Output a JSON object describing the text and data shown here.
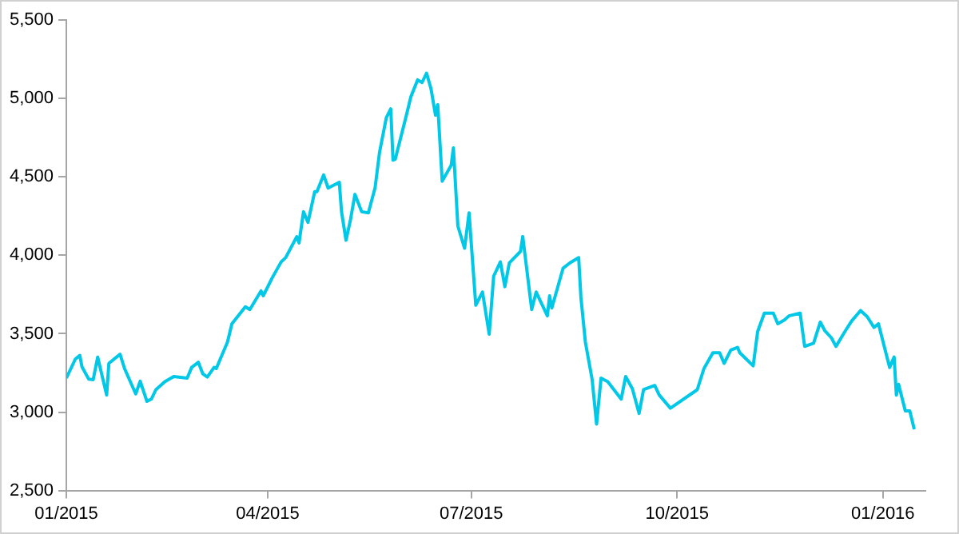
{
  "chart_data": {
    "type": "line",
    "x": [
      "2015-01-01",
      "2015-01-05",
      "2015-01-07",
      "2015-01-08",
      "2015-01-11",
      "2015-01-13",
      "2015-01-15",
      "2015-01-19",
      "2015-01-20",
      "2015-01-25",
      "2015-01-27",
      "2015-02-01",
      "2015-02-03",
      "2015-02-06",
      "2015-02-08",
      "2015-02-10",
      "2015-02-14",
      "2015-02-18",
      "2015-02-24",
      "2015-02-26",
      "2015-03-01",
      "2015-03-03",
      "2015-03-05",
      "2015-03-08",
      "2015-03-09",
      "2015-03-14",
      "2015-03-16",
      "2015-03-22",
      "2015-03-24",
      "2015-03-29",
      "2015-03-30",
      "2015-04-03",
      "2015-04-07",
      "2015-04-09",
      "2015-04-14",
      "2015-04-15",
      "2015-04-17",
      "2015-04-19",
      "2015-04-22",
      "2015-04-23",
      "2015-04-26",
      "2015-04-28",
      "2015-05-03",
      "2015-05-04",
      "2015-05-06",
      "2015-05-08",
      "2015-05-10",
      "2015-05-13",
      "2015-05-16",
      "2015-05-19",
      "2015-05-21",
      "2015-05-24",
      "2015-05-26",
      "2015-05-27",
      "2015-05-28",
      "2015-06-02",
      "2015-06-04",
      "2015-06-07",
      "2015-06-09",
      "2015-06-11",
      "2015-06-13",
      "2015-06-15",
      "2015-06-16",
      "2015-06-18",
      "2015-06-22",
      "2015-06-23",
      "2015-06-25",
      "2015-06-28",
      "2015-06-30",
      "2015-07-03",
      "2015-07-06",
      "2015-07-09",
      "2015-07-11",
      "2015-07-14",
      "2015-07-16",
      "2015-07-18",
      "2015-07-23",
      "2015-07-24",
      "2015-07-28",
      "2015-07-30",
      "2015-08-04",
      "2015-08-05",
      "2015-08-06",
      "2015-08-11",
      "2015-08-14",
      "2015-08-18",
      "2015-08-19",
      "2015-08-21",
      "2015-08-24",
      "2015-08-26",
      "2015-08-28",
      "2015-08-31",
      "2015-09-06",
      "2015-09-08",
      "2015-09-11",
      "2015-09-14",
      "2015-09-16",
      "2015-09-21",
      "2015-09-23",
      "2015-09-28",
      "2015-10-10",
      "2015-10-13",
      "2015-10-17",
      "2015-10-20",
      "2015-10-22",
      "2015-10-25",
      "2015-10-28",
      "2015-10-29",
      "2015-11-04",
      "2015-11-06",
      "2015-11-09",
      "2015-11-13",
      "2015-11-15",
      "2015-11-18",
      "2015-11-20",
      "2015-11-25",
      "2015-11-27",
      "2015-12-01",
      "2015-12-04",
      "2015-12-06",
      "2015-12-09",
      "2015-12-11",
      "2015-12-15",
      "2015-12-18",
      "2015-12-22",
      "2015-12-25",
      "2015-12-28",
      "2015-12-30",
      "2016-01-04",
      "2016-01-06",
      "2016-01-07",
      "2016-01-08",
      "2016-01-11",
      "2016-01-13",
      "2016-01-15"
    ],
    "series": [
      {
        "color": "#00c8e6",
        "values": [
          3217,
          3338,
          3362,
          3288,
          3210,
          3207,
          3351,
          3109,
          3311,
          3369,
          3278,
          3116,
          3197,
          3069,
          3083,
          3143,
          3194,
          3227,
          3217,
          3285,
          3318,
          3244,
          3224,
          3285,
          3278,
          3446,
          3564,
          3672,
          3654,
          3773,
          3742,
          3856,
          3958,
          3985,
          4119,
          4079,
          4278,
          4210,
          4406,
          4406,
          4513,
          4429,
          4466,
          4278,
          4096,
          4227,
          4389,
          4278,
          4271,
          4432,
          4658,
          4877,
          4934,
          4607,
          4613,
          4894,
          5012,
          5119,
          5102,
          5162,
          5062,
          4894,
          4961,
          4473,
          4574,
          4685,
          4187,
          4045,
          4271,
          3682,
          3766,
          3497,
          3867,
          3958,
          3800,
          3952,
          4025,
          4120,
          3654,
          3766,
          3614,
          3742,
          3664,
          3917,
          3951,
          3985,
          3732,
          3446,
          3210,
          2924,
          3217,
          3194,
          3083,
          3227,
          3149,
          2992,
          3143,
          3170,
          3109,
          3025,
          3143,
          3278,
          3379,
          3379,
          3311,
          3396,
          3413,
          3379,
          3295,
          3514,
          3631,
          3631,
          3564,
          3588,
          3614,
          3631,
          3419,
          3439,
          3574,
          3520,
          3473,
          3419,
          3514,
          3581,
          3648,
          3608,
          3540,
          3564,
          3285,
          3352,
          3109,
          3177,
          3008,
          3008,
          2891
        ]
      }
    ],
    "xlim": [
      "2015-01-01",
      "2016-01-20"
    ],
    "xticks": [
      {
        "value": "2015-01-01",
        "label": "01/2015"
      },
      {
        "value": "2015-04-01",
        "label": "04/2015"
      },
      {
        "value": "2015-07-01",
        "label": "07/2015"
      },
      {
        "value": "2015-10-01",
        "label": "10/2015"
      },
      {
        "value": "2016-01-01",
        "label": "01/2016"
      }
    ],
    "ylim": [
      2500,
      5500
    ],
    "yticks": [
      {
        "value": 2500,
        "label": "2,500"
      },
      {
        "value": 3000,
        "label": "3,000"
      },
      {
        "value": 3500,
        "label": "3,500"
      },
      {
        "value": 4000,
        "label": "4,000"
      },
      {
        "value": 4500,
        "label": "4,500"
      },
      {
        "value": 5000,
        "label": "5,000"
      },
      {
        "value": 5500,
        "label": "5,500"
      }
    ],
    "grid": false,
    "legend": false,
    "marker": "none",
    "line_style": "solid"
  }
}
